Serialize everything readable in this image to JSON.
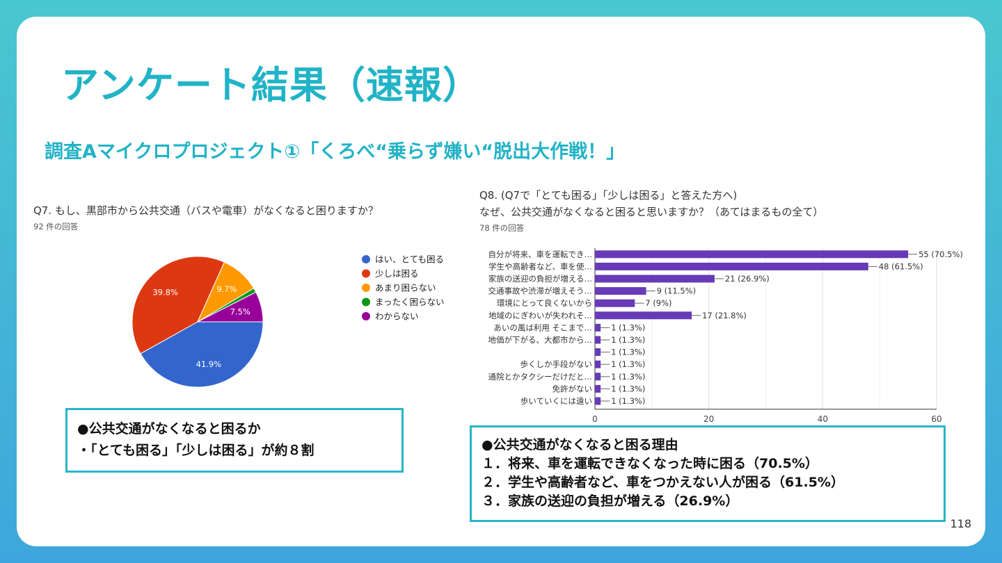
{
  "slide": {
    "title": "アンケート結果（速報）",
    "subtitle": "調査Aマイクロプロジェクト①「くろべ“乗らず嫌い“脱出大作戦！」",
    "page_number": "118"
  },
  "q7": {
    "title": "Q7. もし、黒部市から公共交通（バスや電車）がなくなると困りますか？",
    "count": "92 件の回答"
  },
  "q8": {
    "title_line1": "Q8. (Q7で「とても困る」「少しは困る」と答えた方へ)",
    "title_line2": "なぜ、公共交通がなくなると困ると思いますか？（あてはまるもの全て）",
    "count": "78 件の回答"
  },
  "box_left": {
    "line1": "●公共交通がなくなると困るか",
    "line2": "・「とても困る」「少しは困る」が約８割"
  },
  "box_right": {
    "line1": "●公共交通がなくなると困る理由",
    "line2": "１．将来、車を運転できなくなった時に困る（70.5%）",
    "line3": "２．学生や高齢者など、車をつかえない人が困る（61.5%）",
    "line4": "３．家族の送迎の負担が増える（26.9%）"
  },
  "chart_data": [
    {
      "type": "pie",
      "title": "Q7. もし、黒部市から公共交通（バスや電車）がなくなると困りますか？",
      "legend_position": "right",
      "slices": [
        {
          "label": "はい、とても困る",
          "percent": 41.9,
          "value_label": "41.9%",
          "color": "#3366cc"
        },
        {
          "label": "少しは困る",
          "percent": 39.8,
          "value_label": "39.8%",
          "color": "#dc3912"
        },
        {
          "label": "あまり困らない",
          "percent": 9.7,
          "value_label": "9.7%",
          "color": "#ff9900"
        },
        {
          "label": "まったく困らない",
          "percent": 1.1,
          "value_label": "",
          "color": "#109618"
        },
        {
          "label": "わからない",
          "percent": 7.5,
          "value_label": "7.5%",
          "color": "#990099"
        }
      ]
    },
    {
      "type": "bar",
      "orientation": "horizontal",
      "title": "Q8. なぜ、公共交通がなくなると困ると思いますか？",
      "color": "#673ab7",
      "xlim": [
        0,
        60
      ],
      "xticks": [
        "0",
        "20",
        "40",
        "60"
      ],
      "categories": [
        "自分が将来、車を運転でき…",
        "学生や高齢者など、車を使…",
        "家族の送迎の負担が増える…",
        "交通事故や渋滞が増えそう…",
        "環境にとって良くないから",
        "地域のにぎわいが失われそ…",
        "あいの風は利用 そこまで…",
        "地価が下がる、大都市から…",
        "",
        "歩くしか手段がない",
        "通院とかタクシーだけだと…",
        "免許がない",
        "歩いていくには遠い"
      ],
      "values": [
        55,
        48,
        21,
        9,
        7,
        17,
        1,
        1,
        1,
        1,
        1,
        1,
        1
      ],
      "value_labels": [
        "55 (70.5%)",
        "48 (61.5%)",
        "21 (26.9%)",
        "9 (11.5%)",
        "7 (9%)",
        "17 (21.8%)",
        "1 (1.3%)",
        "1 (1.3%)",
        "1 (1.3%)",
        "1 (1.3%)",
        "1 (1.3%)",
        "1 (1.3%)",
        "1 (1.3%)"
      ]
    }
  ]
}
